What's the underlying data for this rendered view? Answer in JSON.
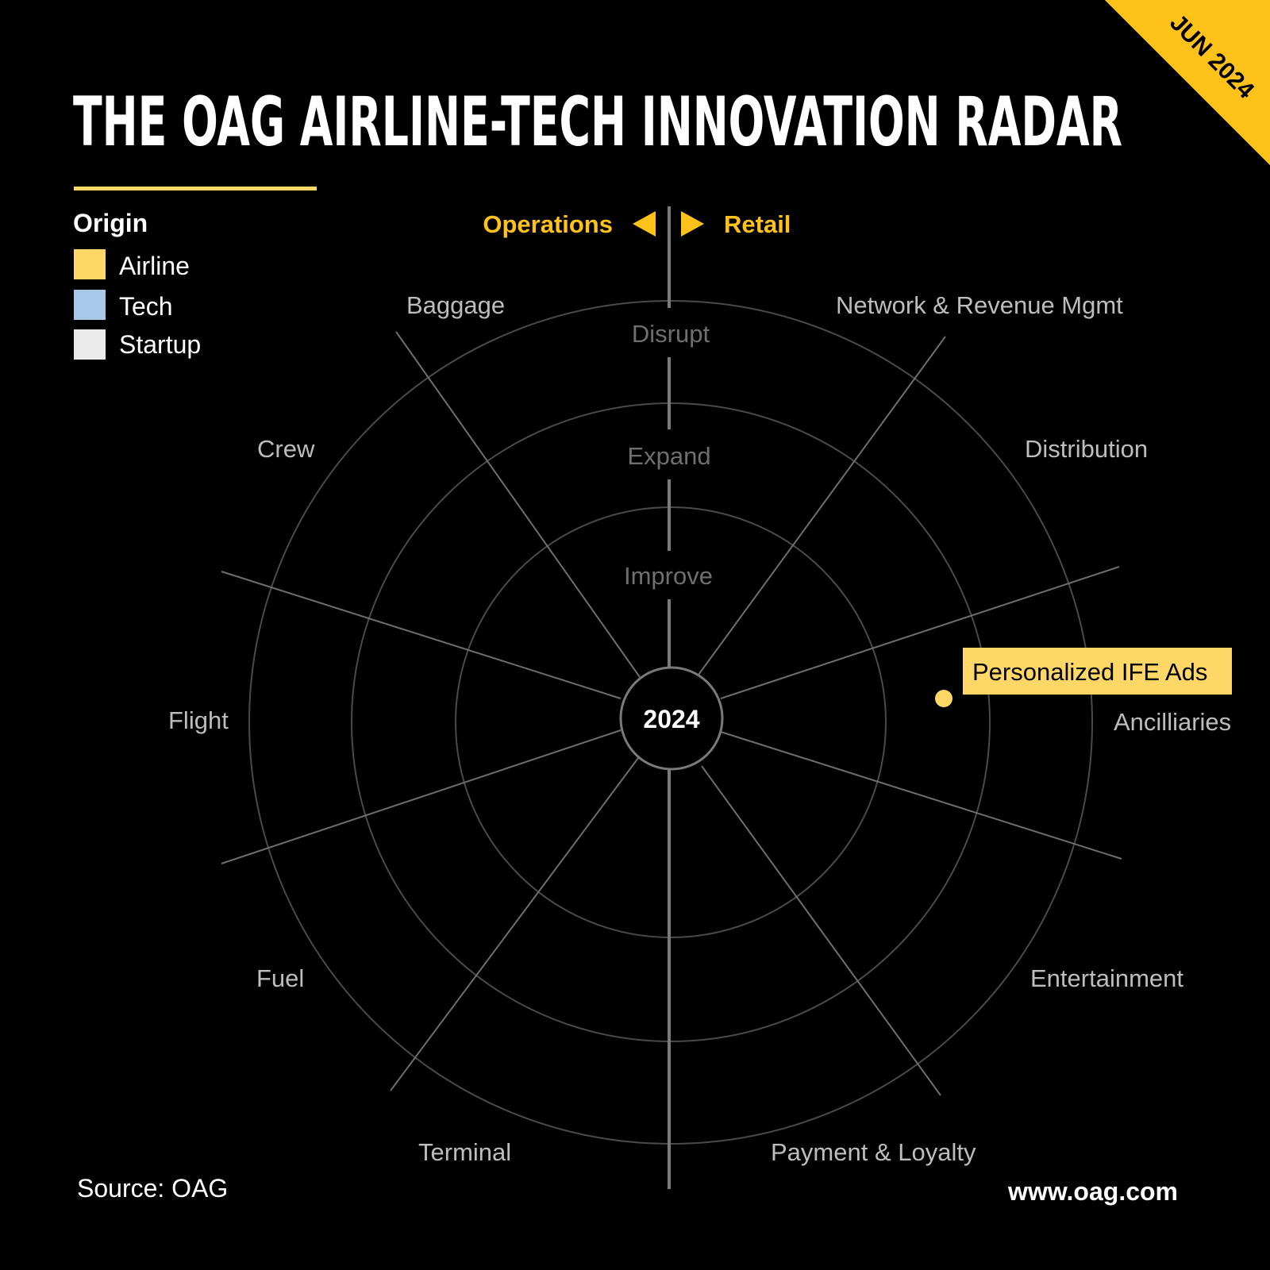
{
  "header": {
    "title": "THE OAG AIRLINE-TECH INNOVATION RADAR",
    "ribbon": "JUN 2024"
  },
  "legend": {
    "title": "Origin",
    "items": [
      {
        "label": "Airline",
        "color": "#FFD766"
      },
      {
        "label": "Tech",
        "color": "#A7C8E8"
      },
      {
        "label": "Startup",
        "color": "#EBEBEB"
      }
    ]
  },
  "direction": {
    "left_label": "Operations",
    "right_label": "Retail"
  },
  "rings": [
    "Disrupt",
    "Expand",
    "Improve"
  ],
  "center_label": "2024",
  "categories": [
    "Baggage",
    "Network & Revenue Mgmt",
    "Crew",
    "Distribution",
    "Flight",
    "Ancilliaries",
    "Fuel",
    "Entertainment",
    "Terminal",
    "Payment & Loyalty"
  ],
  "highlight": {
    "label": "Personalized IFE Ads",
    "category": "Ancilliaries",
    "ring": "Expand",
    "origin": "Airline",
    "color": "#FFD766"
  },
  "footer": {
    "source": "Source: OAG",
    "url": "www.oag.com"
  },
  "colors": {
    "background": "#000000",
    "accent": "#FFC21A",
    "grid": "#555555",
    "muted_text": "#BDBDBD"
  }
}
